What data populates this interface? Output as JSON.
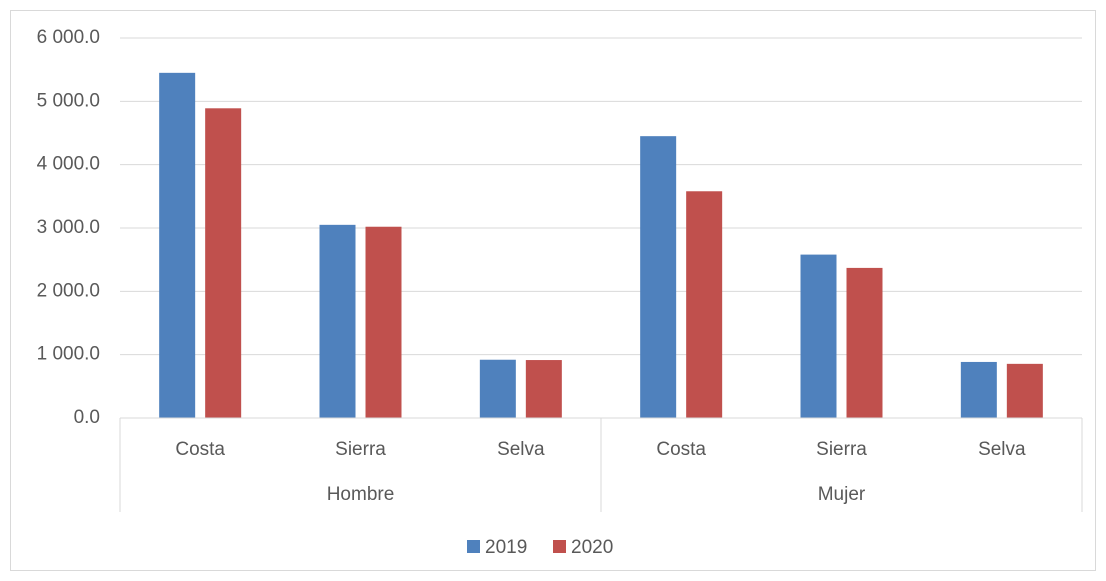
{
  "chart_data": {
    "type": "bar",
    "categories": [
      "Costa",
      "Sierra",
      "Selva",
      "Costa",
      "Sierra",
      "Selva"
    ],
    "groups": [
      "Hombre",
      "Mujer"
    ],
    "series": [
      {
        "name": "2019",
        "color": "#4f81bd",
        "values": [
          5450,
          3050,
          920,
          4450,
          2580,
          885
        ]
      },
      {
        "name": "2020",
        "color": "#c0504d",
        "values": [
          4890,
          3020,
          915,
          3580,
          2370,
          855
        ]
      }
    ],
    "ylim": [
      0,
      6000
    ],
    "yticks": [
      {
        "value": 0,
        "label": "0.0"
      },
      {
        "value": 1000,
        "label": "1 000.0"
      },
      {
        "value": 2000,
        "label": "2 000.0"
      },
      {
        "value": 3000,
        "label": "3 000.0"
      },
      {
        "value": 4000,
        "label": "4 000.0"
      },
      {
        "value": 5000,
        "label": "5 000.0"
      },
      {
        "value": 6000,
        "label": "6 000.0"
      }
    ],
    "grid": true,
    "legend": "bottom"
  }
}
